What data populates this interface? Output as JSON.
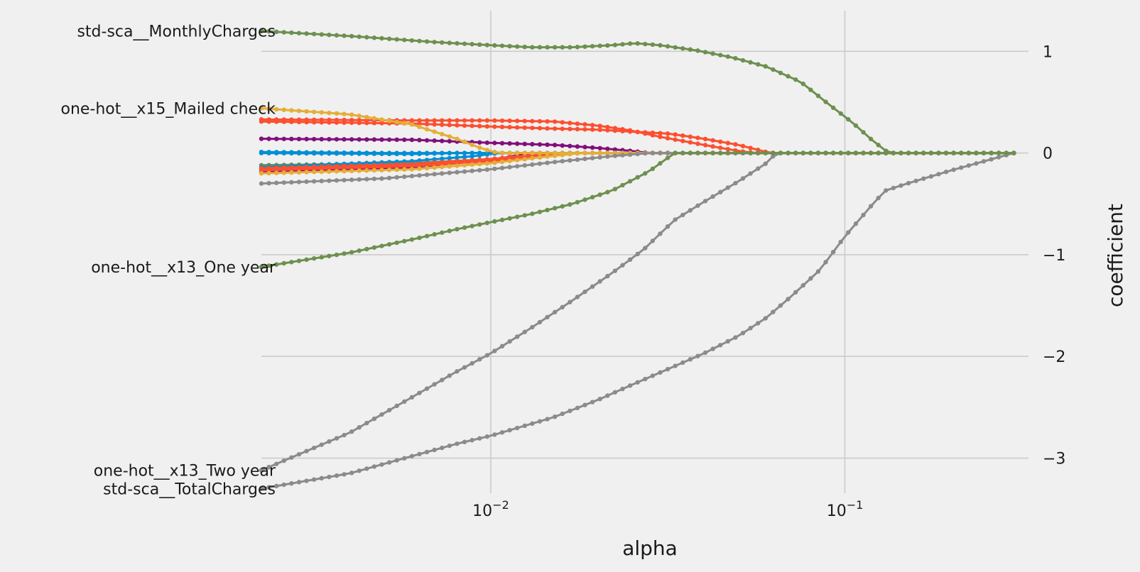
{
  "chart_data": {
    "type": "line",
    "xlabel": "alpha",
    "ylabel": "coefficient",
    "x_scale": "log",
    "xlim": [
      0.00225,
      0.33
    ],
    "ylim": [
      -3.45,
      1.4
    ],
    "x_ticks": [
      {
        "value": 0.01,
        "base": "10",
        "exp": "−2"
      },
      {
        "value": 0.1,
        "base": "10",
        "exp": "−1"
      }
    ],
    "y_ticks": [
      {
        "value": 1,
        "label": "1"
      },
      {
        "value": 0,
        "label": "0"
      },
      {
        "value": -1,
        "label": "−1"
      },
      {
        "value": -2,
        "label": "−2"
      },
      {
        "value": -3,
        "label": "−3"
      }
    ],
    "grid": true,
    "label_rows": [
      {
        "value": 1.2,
        "text": "std-sca__MonthlyCharges"
      },
      {
        "value": 0.44,
        "text": "one-hot__x15_Mailed check"
      },
      {
        "value": -1.12,
        "text": "one-hot__x13_One year"
      },
      {
        "value": -3.12,
        "text": "one-hot__x13_Two year"
      },
      {
        "value": -3.3,
        "text": "std-sca__TotalCharges"
      }
    ],
    "series": [
      {
        "color": "#6d904f",
        "points": [
          [
            0.00225,
            1.2
          ],
          [
            0.004,
            1.15
          ],
          [
            0.007,
            1.09
          ],
          [
            0.01,
            1.06
          ],
          [
            0.013,
            1.04
          ],
          [
            0.017,
            1.04
          ],
          [
            0.022,
            1.06
          ],
          [
            0.0255,
            1.08
          ],
          [
            0.03,
            1.06
          ],
          [
            0.038,
            1.01
          ],
          [
            0.048,
            0.94
          ],
          [
            0.06,
            0.85
          ],
          [
            0.075,
            0.7
          ],
          [
            0.09,
            0.48
          ],
          [
            0.105,
            0.3
          ],
          [
            0.12,
            0.12
          ],
          [
            0.133,
            0.0
          ],
          [
            0.2,
            0.0
          ],
          [
            0.3,
            0.0
          ]
        ]
      },
      {
        "color": "#6d904f",
        "points": [
          [
            0.00225,
            -1.12
          ],
          [
            0.004,
            -0.98
          ],
          [
            0.006,
            -0.85
          ],
          [
            0.008,
            -0.75
          ],
          [
            0.01,
            -0.68
          ],
          [
            0.013,
            -0.6
          ],
          [
            0.017,
            -0.5
          ],
          [
            0.022,
            -0.37
          ],
          [
            0.028,
            -0.18
          ],
          [
            0.033,
            0.0
          ],
          [
            0.1,
            0.0
          ],
          [
            0.3,
            0.0
          ]
        ]
      },
      {
        "color": "#8b8b8b",
        "points": [
          [
            0.00225,
            -3.12
          ],
          [
            0.004,
            -2.75
          ],
          [
            0.006,
            -2.4
          ],
          [
            0.008,
            -2.15
          ],
          [
            0.01,
            -1.97
          ],
          [
            0.013,
            -1.72
          ],
          [
            0.017,
            -1.45
          ],
          [
            0.022,
            -1.18
          ],
          [
            0.027,
            -0.95
          ],
          [
            0.033,
            -0.66
          ],
          [
            0.04,
            -0.48
          ],
          [
            0.05,
            -0.28
          ],
          [
            0.06,
            -0.1
          ],
          [
            0.064,
            0.0
          ],
          [
            0.3,
            0.0
          ]
        ]
      },
      {
        "color": "#8b8b8b",
        "points": [
          [
            0.00225,
            -3.3
          ],
          [
            0.004,
            -3.15
          ],
          [
            0.006,
            -2.98
          ],
          [
            0.008,
            -2.86
          ],
          [
            0.01,
            -2.78
          ],
          [
            0.015,
            -2.6
          ],
          [
            0.02,
            -2.43
          ],
          [
            0.025,
            -2.28
          ],
          [
            0.03,
            -2.16
          ],
          [
            0.04,
            -1.97
          ],
          [
            0.05,
            -1.8
          ],
          [
            0.06,
            -1.62
          ],
          [
            0.07,
            -1.42
          ],
          [
            0.085,
            -1.15
          ],
          [
            0.1,
            -0.82
          ],
          [
            0.12,
            -0.5
          ],
          [
            0.13,
            -0.37
          ],
          [
            0.15,
            -0.3
          ],
          [
            0.2,
            -0.17
          ],
          [
            0.3,
            0.0
          ]
        ]
      },
      {
        "color": "#8b8b8b",
        "points": [
          [
            0.00225,
            -0.3
          ],
          [
            0.005,
            -0.25
          ],
          [
            0.01,
            -0.16
          ],
          [
            0.015,
            -0.09
          ],
          [
            0.022,
            -0.03
          ],
          [
            0.028,
            0.0
          ],
          [
            0.3,
            0.0
          ]
        ]
      },
      {
        "color": "#e5ae38",
        "points": [
          [
            0.00225,
            0.44
          ],
          [
            0.004,
            0.38
          ],
          [
            0.006,
            0.28
          ],
          [
            0.008,
            0.14
          ],
          [
            0.0095,
            0.04
          ],
          [
            0.0105,
            0.0
          ],
          [
            0.3,
            0.0
          ]
        ]
      },
      {
        "color": "#e5ae38",
        "points": [
          [
            0.00225,
            -0.2
          ],
          [
            0.006,
            -0.16
          ],
          [
            0.01,
            -0.1
          ],
          [
            0.014,
            -0.04
          ],
          [
            0.018,
            0.0
          ],
          [
            0.3,
            0.0
          ]
        ]
      },
      {
        "color": "#fc4f30",
        "points": [
          [
            0.00225,
            0.33
          ],
          [
            0.006,
            0.32
          ],
          [
            0.01,
            0.32
          ],
          [
            0.015,
            0.31
          ],
          [
            0.02,
            0.27
          ],
          [
            0.025,
            0.22
          ],
          [
            0.03,
            0.16
          ],
          [
            0.04,
            0.08
          ],
          [
            0.05,
            0.02
          ],
          [
            0.056,
            0.0
          ],
          [
            0.3,
            0.0
          ]
        ]
      },
      {
        "color": "#fc4f30",
        "points": [
          [
            0.00225,
            0.31
          ],
          [
            0.006,
            0.29
          ],
          [
            0.01,
            0.26
          ],
          [
            0.015,
            0.24
          ],
          [
            0.02,
            0.23
          ],
          [
            0.025,
            0.21
          ],
          [
            0.032,
            0.19
          ],
          [
            0.04,
            0.14
          ],
          [
            0.05,
            0.08
          ],
          [
            0.06,
            0.01
          ],
          [
            0.063,
            0.0
          ],
          [
            0.3,
            0.0
          ]
        ]
      },
      {
        "color": "#fc4f30",
        "points": [
          [
            0.00225,
            -0.17
          ],
          [
            0.006,
            -0.13
          ],
          [
            0.01,
            -0.08
          ],
          [
            0.014,
            -0.03
          ],
          [
            0.017,
            0.0
          ],
          [
            0.3,
            0.0
          ]
        ]
      },
      {
        "color": "#fc4f30",
        "points": [
          [
            0.00225,
            -0.15
          ],
          [
            0.006,
            -0.11
          ],
          [
            0.01,
            -0.06
          ],
          [
            0.013,
            -0.02
          ],
          [
            0.015,
            0.0
          ],
          [
            0.3,
            0.0
          ]
        ]
      },
      {
        "color": "#810f7c",
        "points": [
          [
            0.00225,
            0.14
          ],
          [
            0.006,
            0.13
          ],
          [
            0.01,
            0.1
          ],
          [
            0.015,
            0.08
          ],
          [
            0.02,
            0.05
          ],
          [
            0.025,
            0.02
          ],
          [
            0.028,
            0.0
          ],
          [
            0.3,
            0.0
          ]
        ]
      },
      {
        "color": "#810f7c",
        "points": [
          [
            0.00225,
            -0.19
          ],
          [
            0.006,
            -0.14
          ],
          [
            0.01,
            -0.07
          ],
          [
            0.012,
            -0.02
          ],
          [
            0.013,
            0.0
          ],
          [
            0.3,
            0.0
          ]
        ]
      },
      {
        "color": "#008fd5",
        "points": [
          [
            0.00225,
            0.0
          ],
          [
            0.006,
            -0.01
          ],
          [
            0.008,
            0.0
          ],
          [
            0.3,
            0.0
          ]
        ]
      },
      {
        "color": "#008fd5",
        "points": [
          [
            0.00225,
            0.01
          ],
          [
            0.005,
            0.0
          ],
          [
            0.3,
            0.0
          ]
        ]
      },
      {
        "color": "#008fd5",
        "points": [
          [
            0.00225,
            -0.14
          ],
          [
            0.006,
            -0.08
          ],
          [
            0.009,
            -0.03
          ],
          [
            0.0105,
            0.0
          ],
          [
            0.3,
            0.0
          ]
        ]
      },
      {
        "color": "#6d904f",
        "points": [
          [
            0.00225,
            -0.12
          ],
          [
            0.006,
            -0.1
          ],
          [
            0.01,
            -0.06
          ],
          [
            0.015,
            -0.02
          ],
          [
            0.018,
            0.0
          ],
          [
            0.3,
            0.0
          ]
        ]
      }
    ]
  }
}
